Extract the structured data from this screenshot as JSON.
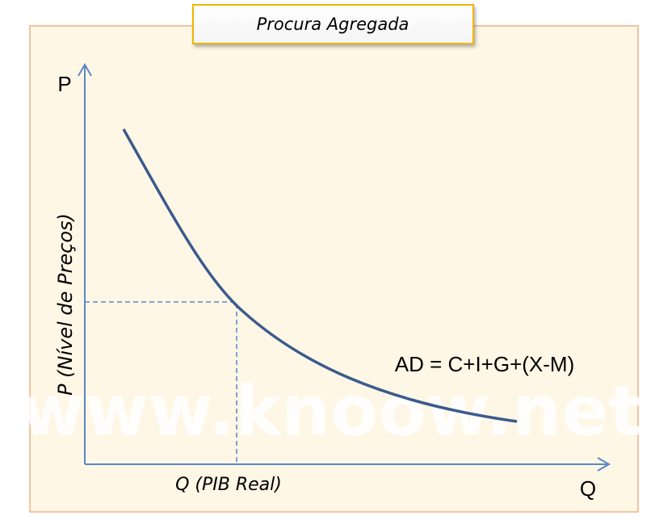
{
  "title": "Procura Agregada",
  "axes": {
    "y_letter": "P",
    "x_letter": "Q",
    "y_label": "P (Nível de Preços)",
    "x_label": "Q (PIB Real)"
  },
  "curve_label": "AD = C+I+G+(X-M)",
  "watermark": "www.knoow.net"
}
